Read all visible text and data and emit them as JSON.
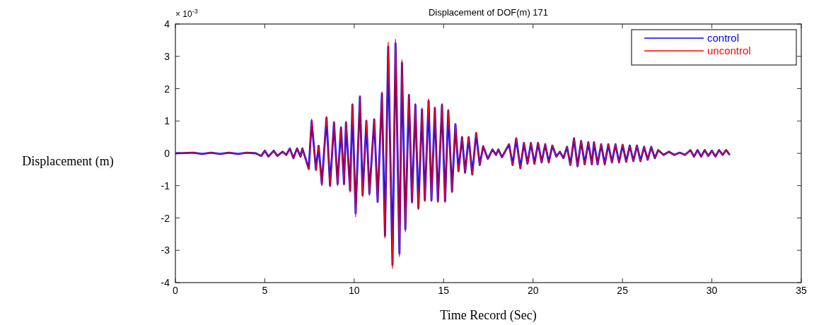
{
  "chart_data": {
    "type": "line",
    "title": "Displacement of DOF(m) 171",
    "xlabel": "Time Record (Sec)",
    "ylabel": "Displacement (m)",
    "annotations": [
      "× 10$^{-3}$"
    ],
    "x": [
      0,
      1,
      1.5,
      2,
      2.5,
      3,
      3.5,
      4,
      4.5,
      4.8,
      5.0,
      5.2,
      5.5,
      5.7,
      6.0,
      6.2,
      6.4,
      6.6,
      6.8,
      7.0,
      7.1,
      7.3,
      7.46,
      7.62,
      7.86,
      8.01,
      8.19,
      8.45,
      8.65,
      8.87,
      9.07,
      9.26,
      9.43,
      9.54,
      9.77,
      9.9,
      10.08,
      10.32,
      10.47,
      10.68,
      10.85,
      11.12,
      11.31,
      11.55,
      11.72,
      11.9,
      12.14,
      12.31,
      12.53,
      12.67,
      12.86,
      13.06,
      13.23,
      13.42,
      13.59,
      13.79,
      13.95,
      14.16,
      14.32,
      14.51,
      14.68,
      14.91,
      15.08,
      15.26,
      15.47,
      15.66,
      15.83,
      16.03,
      16.2,
      16.4,
      16.6,
      16.82,
      17.02,
      17.21,
      17.47,
      17.73,
      17.93,
      18.06,
      18.26,
      18.66,
      18.86,
      19.06,
      19.29,
      19.49,
      19.69,
      19.88,
      20.08,
      20.28,
      20.48,
      20.68,
      20.88,
      21.08,
      21.3,
      21.5,
      21.7,
      21.9,
      22.09,
      22.29,
      22.49,
      22.69,
      22.89,
      23.09,
      23.29,
      23.41,
      23.61,
      23.81,
      24.01,
      24.21,
      24.41,
      24.61,
      24.81,
      25.01,
      25.21,
      25.41,
      25.61,
      25.81,
      26.01,
      26.21,
      26.41,
      26.61,
      26.81,
      27.0,
      27.3,
      27.6,
      27.9,
      28.2,
      28.5,
      28.8,
      29.0,
      29.2,
      29.4,
      29.6,
      29.8,
      30.0,
      30.2,
      30.4,
      30.6,
      30.8,
      31.0
    ],
    "series": [
      {
        "name": "control",
        "color": "#0000ff",
        "values": [
          0,
          0.02,
          -0.02,
          0.02,
          -0.02,
          0.02,
          -0.02,
          0.02,
          0,
          -0.08,
          0.08,
          -0.1,
          0.08,
          -0.08,
          0.05,
          -0.05,
          0.15,
          -0.15,
          0.15,
          -0.1,
          0.15,
          -0.2,
          -0.48,
          1.0,
          -0.5,
          0.23,
          -0.95,
          1.1,
          -1.0,
          0.95,
          -0.95,
          0.8,
          -0.95,
          0.95,
          -1.15,
          1.5,
          -1.85,
          1.75,
          -1.3,
          1.0,
          -1.25,
          1.05,
          -1.5,
          1.85,
          -2.55,
          3.3,
          -3.45,
          3.4,
          -3.1,
          2.8,
          -2.35,
          1.8,
          -1.5,
          1.5,
          -1.7,
          1.35,
          -1.45,
          1.62,
          -1.45,
          1.4,
          -1.48,
          1.5,
          -1.48,
          1.32,
          -1.18,
          0.9,
          -0.55,
          0.5,
          -0.6,
          0.5,
          -0.65,
          0.62,
          -0.36,
          0.22,
          -0.17,
          0.12,
          -0.05,
          0.12,
          -0.12,
          0.28,
          -0.36,
          0.46,
          -0.46,
          0.32,
          -0.32,
          0.32,
          -0.32,
          0.32,
          -0.28,
          0.28,
          -0.28,
          0.24,
          -0.1,
          0.05,
          -0.15,
          0.2,
          -0.36,
          0.46,
          -0.4,
          0.38,
          -0.34,
          0.34,
          -0.34,
          0.34,
          -0.34,
          0.28,
          -0.34,
          0.28,
          -0.28,
          0.28,
          -0.28,
          0.26,
          -0.26,
          0.24,
          -0.24,
          0.24,
          -0.24,
          0.2,
          -0.2,
          0.2,
          -0.15,
          0.1,
          -0.05,
          0.05,
          -0.05,
          0.02,
          -0.05,
          0.1,
          -0.1,
          0.1,
          -0.1,
          0.1,
          -0.08,
          0.08,
          -0.1,
          0.1,
          -0.05,
          0.1,
          -0.05
        ]
      },
      {
        "name": "uncontrol",
        "color": "#ff0000",
        "values": [
          0,
          0.02,
          -0.02,
          0.02,
          -0.02,
          0.02,
          -0.02,
          0.02,
          0,
          -0.08,
          0.08,
          -0.1,
          0.08,
          -0.08,
          0.05,
          -0.05,
          0.15,
          -0.15,
          0.15,
          -0.1,
          0.15,
          -0.2,
          -0.5,
          1.06,
          -0.54,
          0.23,
          -1.0,
          1.14,
          -1.03,
          0.99,
          -1.0,
          0.81,
          -0.98,
          0.99,
          -1.2,
          1.54,
          -1.96,
          1.79,
          -1.33,
          1.03,
          -1.3,
          1.06,
          -1.52,
          1.9,
          -2.62,
          3.43,
          -3.56,
          3.52,
          -3.19,
          2.89,
          -2.43,
          1.83,
          -1.55,
          1.54,
          -1.74,
          1.4,
          -1.49,
          1.68,
          -1.49,
          1.44,
          -1.52,
          1.54,
          -1.52,
          1.36,
          -1.22,
          0.92,
          -0.57,
          0.52,
          -0.6,
          0.52,
          -0.68,
          0.66,
          -0.38,
          0.23,
          -0.17,
          0.12,
          -0.05,
          0.12,
          -0.12,
          0.3,
          -0.38,
          0.48,
          -0.48,
          0.34,
          -0.34,
          0.34,
          -0.34,
          0.34,
          -0.3,
          0.3,
          -0.3,
          0.25,
          -0.1,
          0.05,
          -0.15,
          0.2,
          -0.38,
          0.48,
          -0.41,
          0.4,
          -0.35,
          0.35,
          -0.35,
          0.35,
          -0.35,
          0.3,
          -0.35,
          0.3,
          -0.3,
          0.3,
          -0.3,
          0.28,
          -0.28,
          0.25,
          -0.25,
          0.25,
          -0.25,
          0.22,
          -0.2,
          0.2,
          -0.15,
          0.1,
          -0.05,
          0.05,
          -0.05,
          0.02,
          -0.05,
          0.1,
          -0.1,
          0.1,
          -0.1,
          0.1,
          -0.08,
          0.08,
          -0.1,
          0.1,
          -0.05,
          0.1,
          -0.05
        ]
      }
    ],
    "xlim": [
      0,
      35
    ],
    "xticks": [
      0,
      5,
      10,
      15,
      20,
      25,
      30,
      35
    ],
    "ylim": [
      -4,
      4
    ],
    "yticks": [
      -4,
      -3,
      -2,
      -1,
      0,
      1,
      2,
      3,
      4
    ],
    "legend": "top right",
    "grid": false,
    "line_style": "solid"
  }
}
